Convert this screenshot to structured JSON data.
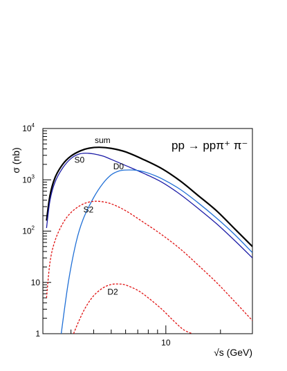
{
  "chart_data": {
    "type": "line",
    "title": "pp → ppπ⁺ π⁻",
    "xlabel": "√s (GeV)",
    "ylabel": "σ (nb)",
    "xscale": "log",
    "yscale": "log",
    "xlim": [
      2.1,
      30
    ],
    "ylim": [
      1,
      10000
    ],
    "x_ticks": [
      {
        "value": 10,
        "label": "10"
      }
    ],
    "y_ticks": [
      {
        "value": 1,
        "base": "1",
        "exp": ""
      },
      {
        "value": 10,
        "base": "10",
        "exp": ""
      },
      {
        "value": 100,
        "base": "10",
        "exp": "2"
      },
      {
        "value": 1000,
        "base": "10",
        "exp": "3"
      },
      {
        "value": 10000,
        "base": "10",
        "exp": "4"
      }
    ],
    "series": [
      {
        "name": "sum",
        "color": "#000000",
        "dash": "solid",
        "x": [
          2.2,
          2.3,
          2.45,
          2.7,
          3.0,
          3.4,
          3.8,
          4.3,
          5.0,
          6.0,
          7.5,
          9.5,
          12,
          15,
          19,
          24,
          30
        ],
        "y": [
          160,
          500,
          1100,
          2000,
          2900,
          3700,
          4150,
          4300,
          4100,
          3500,
          2500,
          1650,
          950,
          500,
          250,
          110,
          50
        ]
      },
      {
        "name": "S0",
        "color": "#1a1aa6",
        "dash": "solid",
        "x": [
          2.2,
          2.3,
          2.45,
          2.7,
          3.0,
          3.3,
          3.6,
          4.0,
          4.5,
          5.0,
          6.0,
          7.5,
          9.5,
          12,
          15,
          19,
          24,
          30
        ],
        "y": [
          115,
          400,
          900,
          1700,
          2600,
          3150,
          3300,
          3200,
          2900,
          2500,
          1900,
          1350,
          900,
          520,
          280,
          140,
          65,
          30
        ]
      },
      {
        "name": "D0",
        "color": "#1f6fd6",
        "dash": "solid",
        "x": [
          2.65,
          2.9,
          3.2,
          3.5,
          4.0,
          4.5,
          5.0,
          5.5,
          6.0,
          7.0,
          8.0,
          9.5,
          12,
          15,
          19,
          24,
          30
        ],
        "y": [
          1,
          10,
          60,
          170,
          450,
          850,
          1250,
          1480,
          1550,
          1520,
          1350,
          1050,
          650,
          360,
          180,
          85,
          38
        ]
      },
      {
        "name": "S2",
        "color": "#e01010",
        "dash": "dashed",
        "x": [
          2.2,
          2.3,
          2.45,
          2.7,
          3.0,
          3.4,
          3.8,
          4.3,
          5.0,
          6.0,
          7.5,
          9.5,
          12,
          15,
          19,
          24,
          30
        ],
        "y": [
          5,
          25,
          65,
          140,
          230,
          320,
          370,
          380,
          340,
          250,
          150,
          85,
          45,
          22,
          10,
          4.2,
          1.8
        ]
      },
      {
        "name": "D2",
        "color": "#e01010",
        "dash": "dashed",
        "x": [
          3.1,
          3.3,
          3.6,
          4.0,
          4.5,
          5.0,
          5.5,
          6.0,
          7.0,
          8.0,
          9.5,
          11,
          12.5,
          14
        ],
        "y": [
          1,
          1.7,
          3.2,
          5.5,
          7.8,
          9.1,
          9.3,
          8.9,
          7.0,
          5.0,
          3.0,
          1.8,
          1.2,
          1
        ]
      }
    ],
    "annotations": [
      {
        "text": "sum",
        "series": "sum"
      },
      {
        "text": "S0",
        "series": "S0"
      },
      {
        "text": "D0",
        "series": "D0"
      },
      {
        "text": "S2",
        "series": "S2"
      },
      {
        "text": "D2",
        "series": "D2"
      }
    ],
    "grid": false,
    "legend": "none"
  }
}
